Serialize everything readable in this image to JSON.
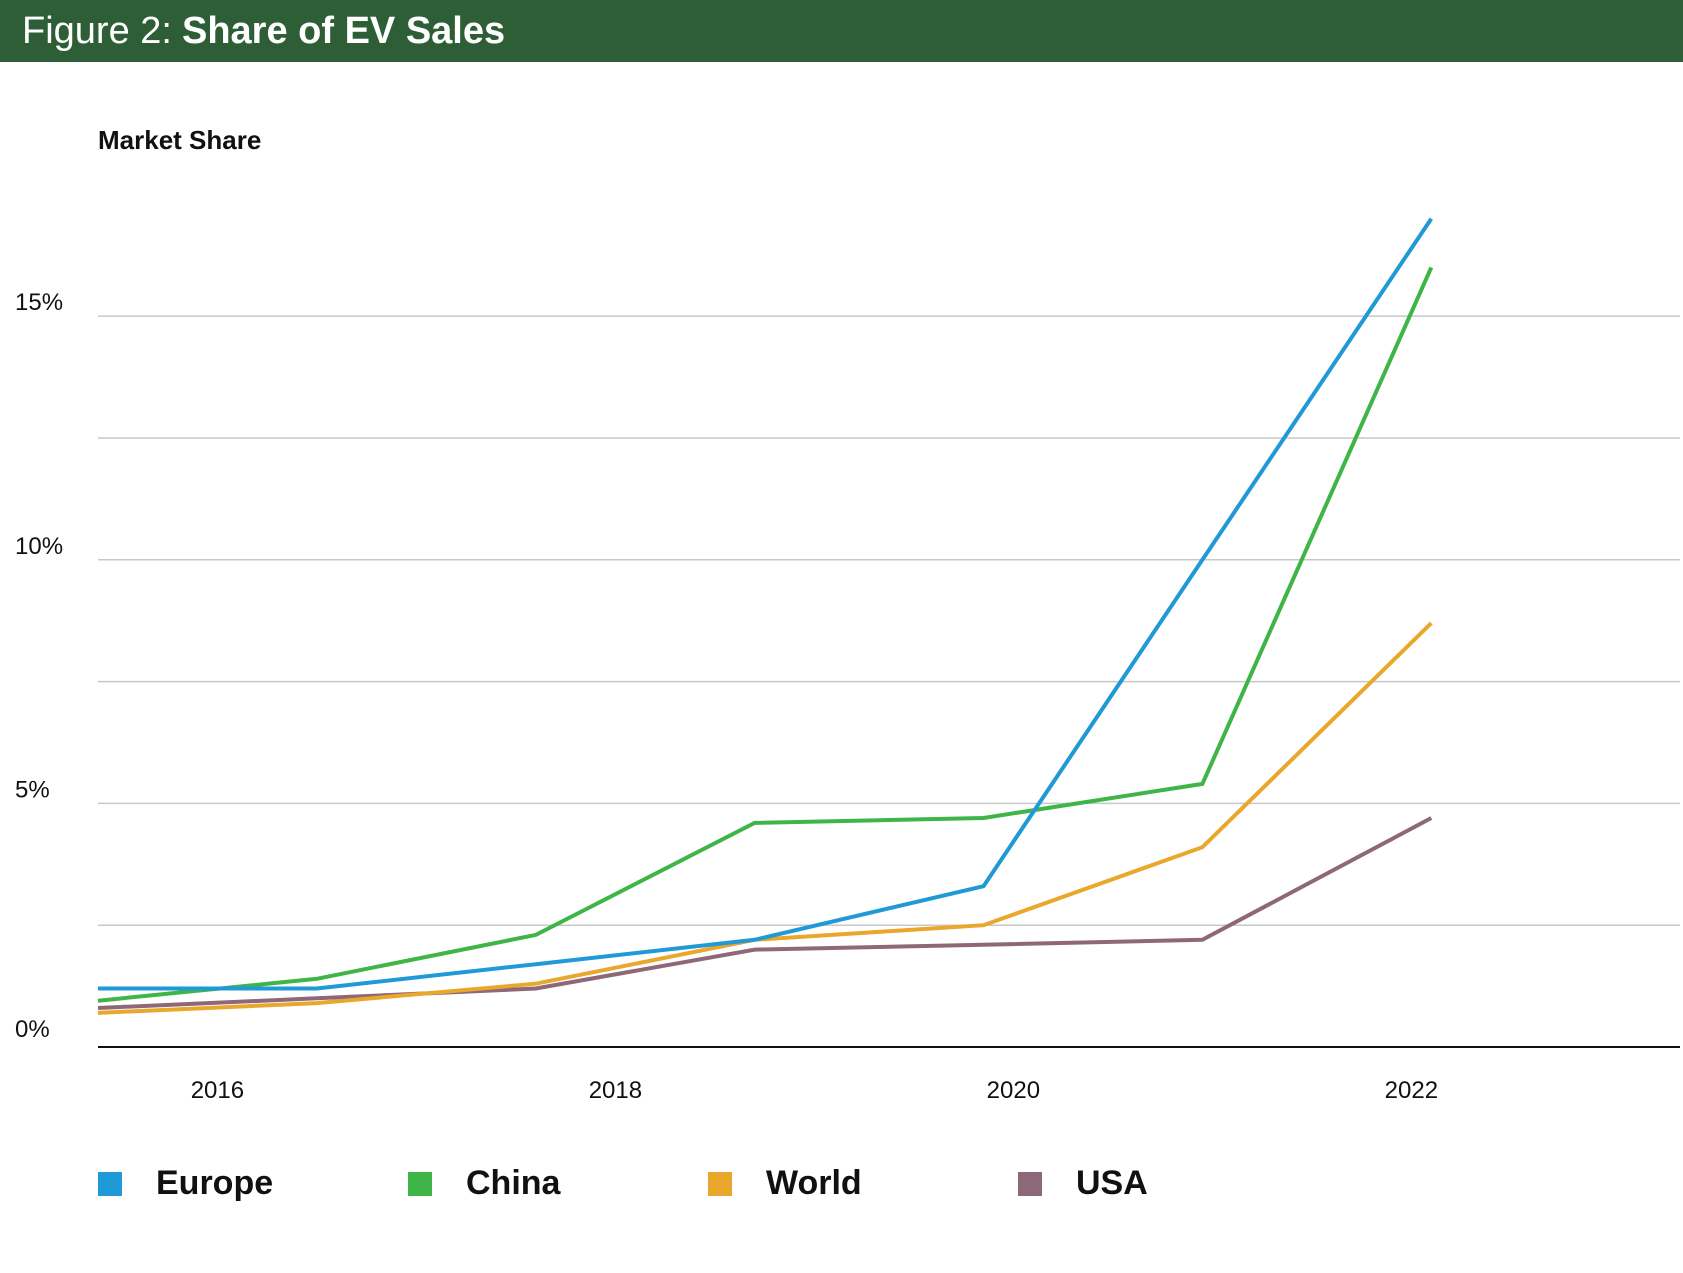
{
  "header": {
    "prefix": "Figure 2:",
    "title": "Share of EV Sales"
  },
  "colors": {
    "header_bg": "#2e5e35",
    "gridline": "#c8c8c8",
    "axis": "#111111"
  },
  "chart_data": {
    "type": "line",
    "title": "Share of EV Sales",
    "xlabel": "",
    "ylabel": "Market Share",
    "x": [
      2015.4,
      2016.5,
      2017.6,
      2018.7,
      2019.85,
      2020.95,
      2022.1
    ],
    "x_ticks": [
      {
        "value": 2016,
        "label": "2016"
      },
      {
        "value": 2018,
        "label": "2018"
      },
      {
        "value": 2020,
        "label": "2020"
      },
      {
        "value": 2022,
        "label": "2022"
      }
    ],
    "xlim": [
      2015.4,
      2023.35
    ],
    "ylim": [
      0,
      18
    ],
    "y_ticks": [
      {
        "value": 0,
        "label": "0%"
      },
      {
        "value": 5,
        "label": "5%"
      },
      {
        "value": 10,
        "label": "10%"
      },
      {
        "value": 15,
        "label": "15%"
      }
    ],
    "y_gridlines": [
      2.5,
      5,
      7.5,
      10,
      12.5,
      15
    ],
    "grid": true,
    "legend_position": "bottom",
    "series": [
      {
        "name": "Europe",
        "color": "#1f9ad6",
        "values": [
          1.2,
          1.2,
          1.7,
          2.2,
          3.3,
          10.0,
          17.0
        ]
      },
      {
        "name": "China",
        "color": "#3fb548",
        "values": [
          0.95,
          1.4,
          2.3,
          4.6,
          4.7,
          5.4,
          16.0
        ]
      },
      {
        "name": "World",
        "color": "#e9a72b",
        "values": [
          0.7,
          0.9,
          1.3,
          2.2,
          2.5,
          4.1,
          8.7
        ]
      },
      {
        "name": "USA",
        "color": "#8e6779",
        "values": [
          0.8,
          1.0,
          1.2,
          2.0,
          2.1,
          2.2,
          4.7
        ]
      }
    ]
  }
}
